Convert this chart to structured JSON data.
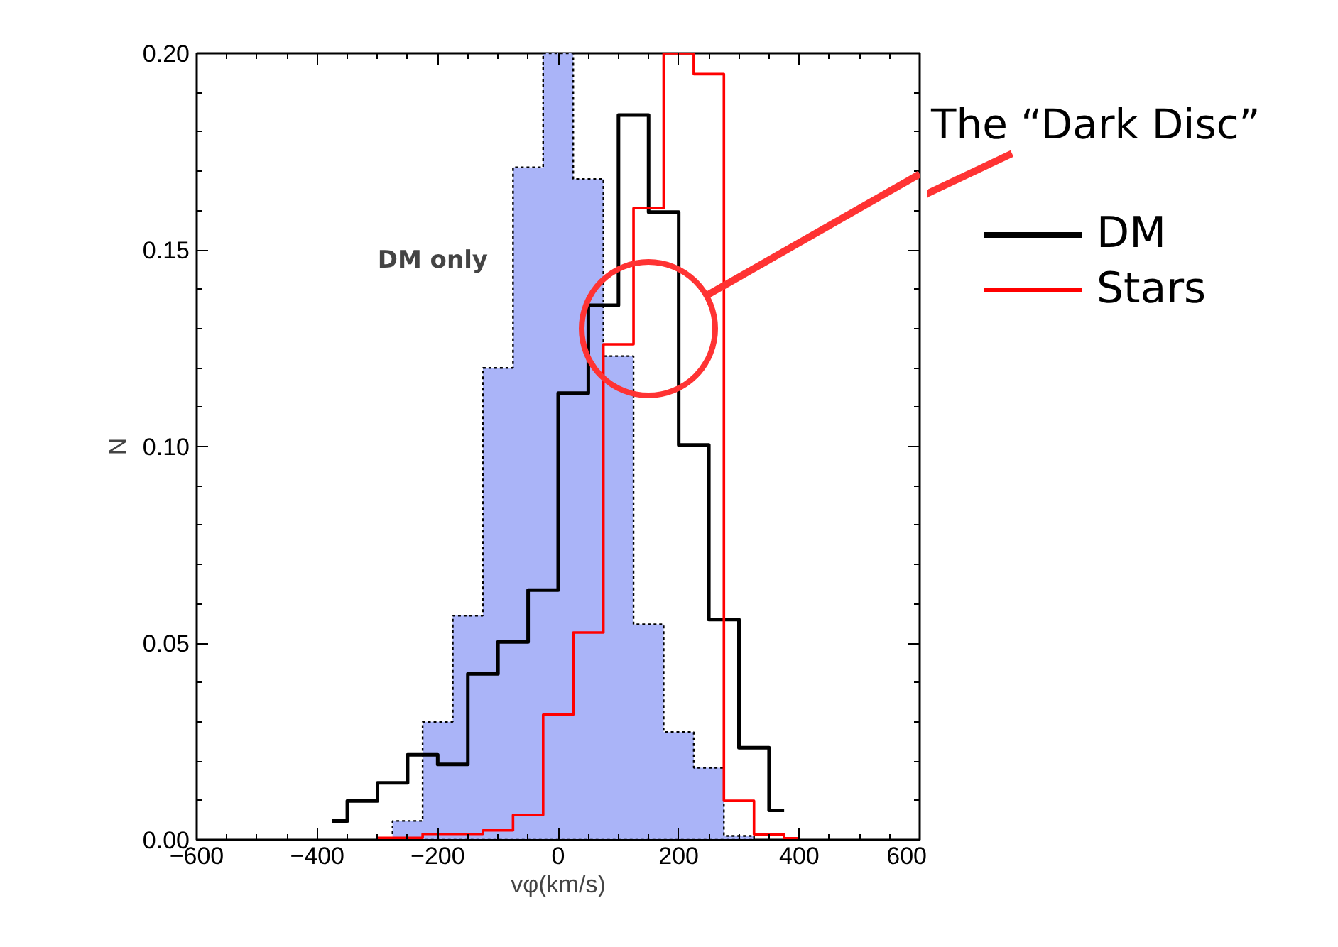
{
  "chart_data": {
    "type": "histogram",
    "xlabel": "vφ(km/s)",
    "ylabel": "N",
    "xlim": [
      -600,
      600
    ],
    "ylim": [
      0,
      0.2
    ],
    "xticks": [
      {
        "value": -600,
        "label": "−600"
      },
      {
        "value": -400,
        "label": "−400"
      },
      {
        "value": -200,
        "label": "−200"
      },
      0,
      200,
      400,
      600
    ],
    "yticks": [
      {
        "value": 0,
        "label": "0.00"
      },
      {
        "value": 0.05,
        "label": "0.05"
      },
      {
        "value": 0.1,
        "label": "0.10"
      },
      {
        "value": 0.15,
        "label": "0.15"
      },
      {
        "value": 0.2,
        "label": "0.20"
      }
    ],
    "grid": false,
    "legend": "right",
    "bins": [
      -275,
      -225,
      -175,
      -125,
      -75,
      -25,
      25,
      75,
      125,
      175,
      225,
      275,
      325
    ],
    "series": [
      {
        "color": "#aab4f8",
        "line_style": "dotted",
        "values": [
          0.0048,
          0.03,
          0.057,
          0.12,
          0.171,
          0.2,
          0.168,
          0.123,
          0.0548,
          0.0274,
          0.0183,
          0.001
        ]
      },
      {
        "name": "DM",
        "type": "step",
        "color": "#000000",
        "line_style": "solid",
        "x": [
          -375,
          -350,
          -300,
          -250,
          -200,
          -150,
          -100,
          -50,
          0,
          50,
          100,
          150,
          200,
          250,
          300,
          350,
          375
        ],
        "values": [
          0.0048,
          0.0099,
          0.0145,
          0.0216,
          0.0192,
          0.0422,
          0.0503,
          0.0635,
          0.1136,
          0.1359,
          0.1843,
          0.1596,
          0.1004,
          0.056,
          0.0234,
          0.0075,
          0.0075
        ]
      },
      {
        "name": "Stars",
        "type": "step",
        "color": "#ff0000",
        "line_style": "solid",
        "x": [
          -300,
          -225,
          -125,
          -75,
          -25,
          25,
          75,
          125,
          175,
          225,
          275,
          325,
          375,
          400
        ],
        "values": [
          0.0005,
          0.0015,
          0.0024,
          0.0063,
          0.0318,
          0.0527,
          0.126,
          0.1606,
          0.2,
          0.1947,
          0.0099,
          0.0014,
          0.0004,
          0.0004
        ]
      }
    ],
    "annotations": [
      "DM only",
      "The “Dark Disc”"
    ]
  }
}
